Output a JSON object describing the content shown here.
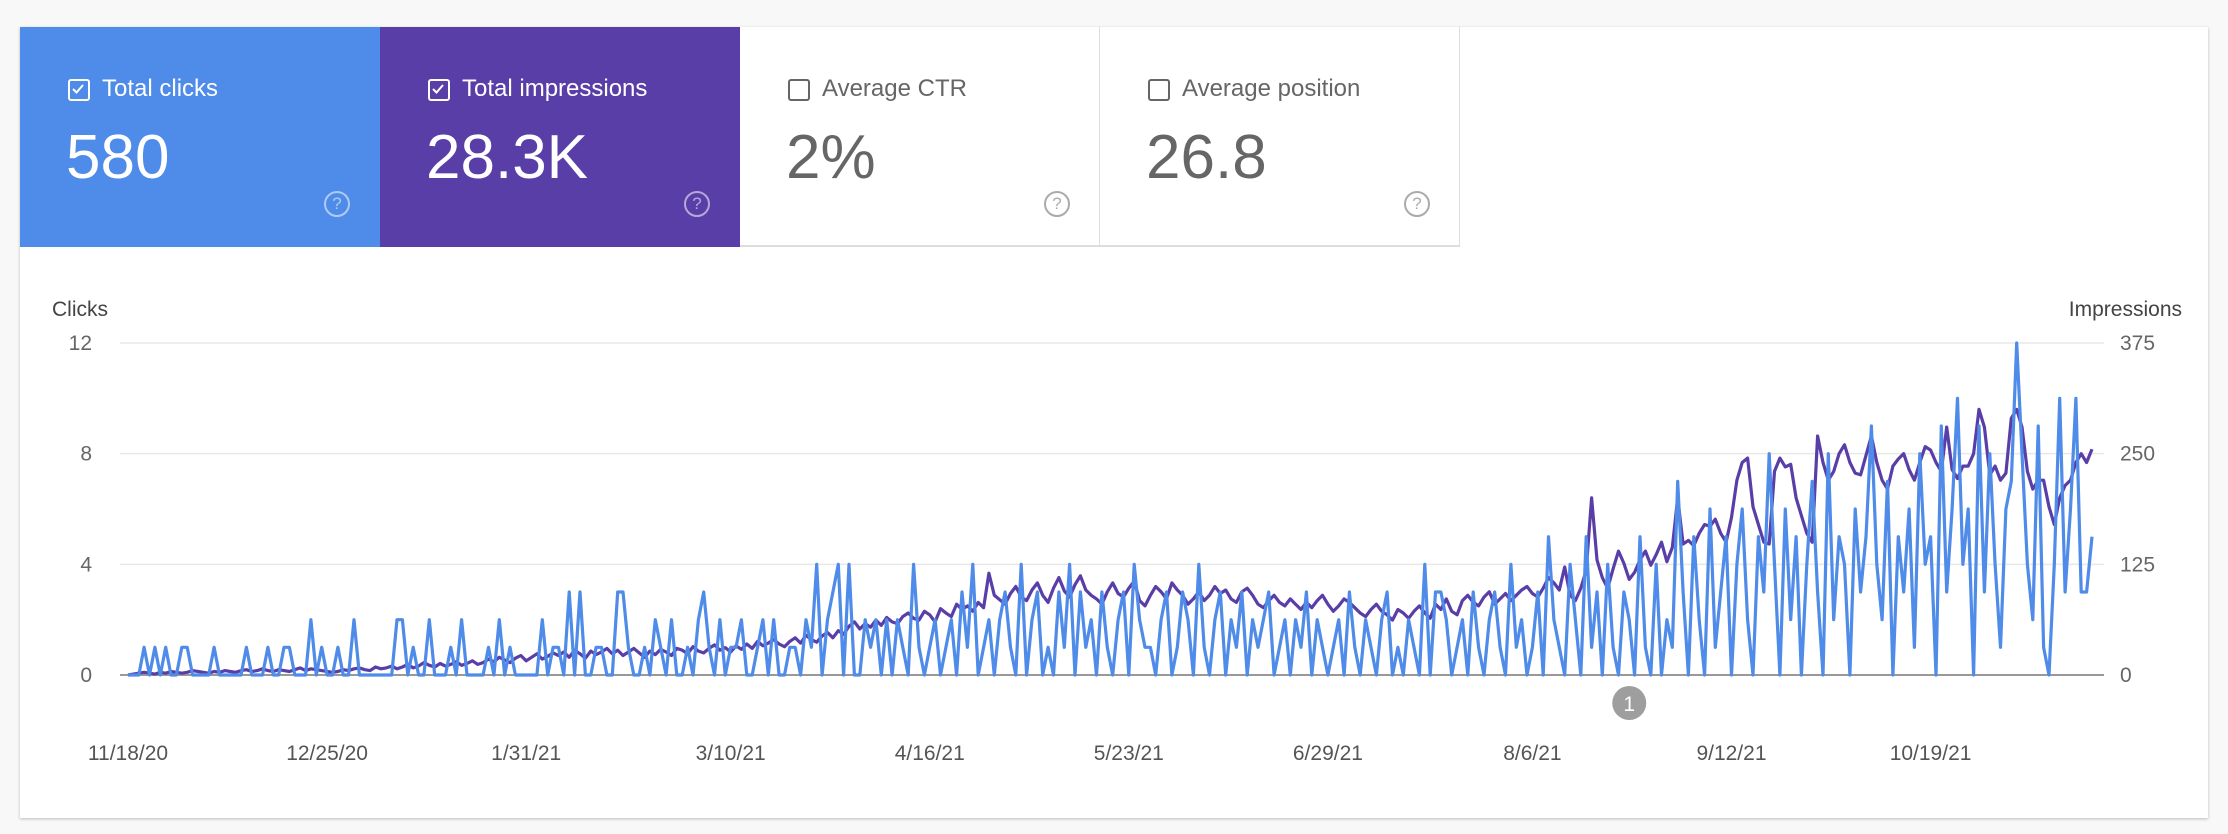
{
  "metrics": [
    {
      "label": "Total clicks",
      "value": "580",
      "checked": true,
      "color": "#4f8be8"
    },
    {
      "label": "Total impressions",
      "value": "28.3K",
      "checked": true,
      "color": "#5a3ea8"
    },
    {
      "label": "Average CTR",
      "value": "2%",
      "checked": false
    },
    {
      "label": "Average position",
      "value": "26.8",
      "checked": false
    }
  ],
  "help_icon": "?",
  "chart_data": {
    "type": "line",
    "start_date": "11/18/20",
    "end_date": "11/18/21",
    "left_axis": {
      "label": "Clicks",
      "ticks": [
        "0",
        "4",
        "8",
        "12"
      ],
      "ylim": [
        0,
        12
      ]
    },
    "right_axis": {
      "label": "Impressions",
      "ticks": [
        "0",
        "125",
        "250",
        "375"
      ],
      "ylim": [
        0,
        375
      ]
    },
    "x_ticks": [
      "11/18/20",
      "12/25/20",
      "1/31/21",
      "3/10/21",
      "4/16/21",
      "5/23/21",
      "6/29/21",
      "8/6/21",
      "9/12/21",
      "10/19/21"
    ],
    "grid": true,
    "annotations": [
      {
        "label": "1",
        "date": "8/24/21"
      }
    ],
    "series": [
      {
        "name": "Clicks",
        "axis": "left",
        "color": "#4f8be8",
        "values": [
          0,
          0,
          0,
          1,
          0,
          1,
          0,
          1,
          0,
          0,
          1,
          1,
          0,
          0,
          0,
          0,
          1,
          0,
          0,
          0,
          0,
          0,
          1,
          0,
          0,
          0,
          1,
          0,
          0,
          1,
          1,
          0,
          0,
          0,
          2,
          0,
          1,
          0,
          0,
          1,
          0,
          0,
          2,
          0,
          0,
          0,
          0,
          0,
          0,
          0,
          2,
          2,
          0,
          1,
          0,
          0,
          2,
          0,
          0,
          0,
          1,
          0,
          2,
          0,
          0,
          0,
          0,
          1,
          0,
          2,
          0,
          1,
          0,
          0,
          0,
          0,
          0,
          2,
          0,
          1,
          1,
          0,
          3,
          0,
          3,
          0,
          0,
          1,
          1,
          0,
          0,
          3,
          3,
          1,
          0,
          0,
          1,
          0,
          2,
          1,
          0,
          2,
          0,
          0,
          1,
          0,
          2,
          3,
          1,
          0,
          2,
          0,
          1,
          1,
          2,
          0,
          0,
          1,
          2,
          0,
          2,
          0,
          0,
          1,
          1,
          0,
          2,
          1,
          4,
          0,
          2,
          3,
          4,
          0,
          4,
          0,
          0,
          2,
          1,
          2,
          0,
          2,
          0,
          2,
          1,
          0,
          4,
          1,
          0,
          1,
          2,
          0,
          1,
          2,
          0,
          3,
          1,
          4,
          0,
          1,
          2,
          0,
          2,
          3,
          1,
          0,
          4,
          0,
          2,
          3,
          0,
          1,
          0,
          3,
          1,
          4,
          0,
          3,
          1,
          2,
          0,
          3,
          1,
          0,
          2,
          3,
          0,
          4,
          2,
          1,
          1,
          0,
          2,
          3,
          0,
          1,
          3,
          2,
          0,
          4,
          1,
          0,
          2,
          3,
          0,
          2,
          1,
          3,
          0,
          2,
          1,
          2,
          3,
          0,
          1,
          2,
          0,
          2,
          1,
          3,
          0,
          2,
          1,
          0,
          1,
          2,
          0,
          3,
          1,
          0,
          2,
          1,
          0,
          2,
          3,
          0,
          1,
          0,
          2,
          1,
          0,
          4,
          0,
          3,
          3,
          2,
          0,
          1,
          2,
          0,
          3,
          1,
          0,
          2,
          3,
          1,
          0,
          4,
          1,
          2,
          0,
          1,
          3,
          0,
          5,
          2,
          1,
          0,
          4,
          2,
          0,
          5,
          1,
          3,
          0,
          4,
          1,
          0,
          3,
          2,
          0,
          5,
          1,
          0,
          4,
          0,
          2,
          1,
          7,
          3,
          0,
          5,
          2,
          0,
          6,
          1,
          3,
          5,
          0,
          4,
          6,
          2,
          0,
          5,
          3,
          8,
          4,
          0,
          6,
          2,
          5,
          0,
          4,
          7,
          3,
          0,
          8,
          2,
          5,
          4,
          0,
          6,
          3,
          5,
          9,
          4,
          2,
          7,
          0,
          5,
          3,
          6,
          1,
          8,
          4,
          5,
          0,
          9,
          3,
          6,
          10,
          4,
          6,
          0,
          9,
          3,
          8,
          4,
          1,
          6,
          7,
          12,
          8,
          4,
          2,
          9,
          1,
          0,
          4,
          10,
          3,
          6,
          10,
          3,
          3,
          5
        ]
      },
      {
        "name": "Impressions",
        "axis": "right",
        "color": "#5a3ea8",
        "values": [
          0,
          1,
          2,
          3,
          2,
          1,
          3,
          2,
          4,
          3,
          2,
          3,
          5,
          4,
          3,
          2,
          4,
          3,
          5,
          4,
          3,
          5,
          6,
          4,
          5,
          7,
          5,
          4,
          6,
          5,
          4,
          6,
          8,
          5,
          7,
          6,
          5,
          4,
          3,
          4,
          6,
          5,
          7,
          8,
          6,
          5,
          9,
          7,
          8,
          10,
          7,
          9,
          12,
          8,
          10,
          14,
          11,
          9,
          13,
          10,
          12,
          15,
          11,
          13,
          16,
          12,
          14,
          18,
          15,
          20,
          17,
          14,
          19,
          22,
          16,
          20,
          24,
          18,
          21,
          25,
          22,
          26,
          20,
          28,
          24,
          19,
          27,
          23,
          26,
          30,
          24,
          28,
          22,
          26,
          30,
          25,
          20,
          27,
          23,
          29,
          26,
          22,
          30,
          28,
          24,
          32,
          27,
          25,
          30,
          34,
          28,
          31,
          26,
          33,
          29,
          35,
          30,
          38,
          33,
          36,
          40,
          35,
          32,
          38,
          42,
          36,
          45,
          40,
          37,
          44,
          48,
          42,
          50,
          46,
          55,
          60,
          52,
          58,
          54,
          62,
          56,
          65,
          60,
          58,
          66,
          70,
          64,
          62,
          72,
          68,
          60,
          75,
          70,
          66,
          80,
          74,
          78,
          72,
          82,
          76,
          115,
          90,
          85,
          80,
          92,
          100,
          88,
          84,
          96,
          104,
          90,
          82,
          98,
          110,
          95,
          88,
          102,
          112,
          96,
          90,
          86,
          80,
          94,
          104,
          92,
          88,
          98,
          106,
          84,
          78,
          90,
          100,
          94,
          86,
          104,
          96,
          90,
          80,
          86,
          94,
          84,
          90,
          100,
          92,
          96,
          86,
          82,
          94,
          98,
          90,
          80,
          76,
          84,
          90,
          82,
          78,
          86,
          80,
          74,
          82,
          76,
          84,
          90,
          80,
          72,
          78,
          86,
          82,
          76,
          70,
          66,
          74,
          80,
          72,
          68,
          62,
          74,
          70,
          64,
          72,
          78,
          70,
          64,
          80,
          74,
          86,
          72,
          68,
          84,
          90,
          82,
          78,
          88,
          94,
          80,
          86,
          92,
          84,
          90,
          96,
          100,
          92,
          88,
          98,
          110,
          104,
          96,
          122,
          90,
          84,
          98,
          118,
          200,
          130,
          110,
          98,
          120,
          140,
          126,
          108,
          116,
          130,
          140,
          124,
          136,
          150,
          128,
          144,
          200,
          148,
          152,
          146,
          160,
          170,
          168,
          176,
          160,
          150,
          178,
          220,
          240,
          245,
          190,
          170,
          150,
          148,
          230,
          245,
          235,
          238,
          200,
          180,
          160,
          150,
          270,
          240,
          220,
          230,
          250,
          260,
          240,
          228,
          226,
          248,
          270,
          240,
          220,
          210,
          236,
          244,
          250,
          232,
          220,
          240,
          258,
          254,
          240,
          230,
          280,
          232,
          222,
          236,
          236,
          250,
          300,
          280,
          226,
          236,
          220,
          228,
          290,
          300,
          280,
          230,
          210,
          220,
          220,
          190,
          170,
          200,
          214,
          220,
          240,
          250,
          240,
          255
        ]
      }
    ]
  }
}
